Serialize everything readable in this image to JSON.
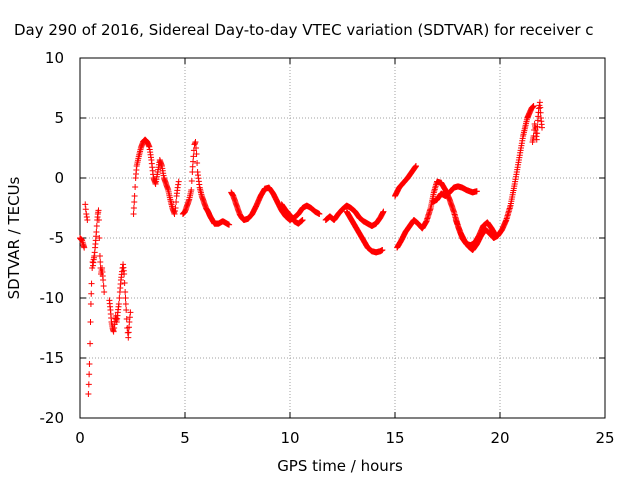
{
  "chart_data": {
    "type": "scatter",
    "title": "Day 290 of 2016, Sidereal Day-to-day VTEC variation (SDTVAR) for receiver c",
    "xlabel": "GPS time / hours",
    "ylabel": "SDTVAR / TECUs",
    "xlim": [
      0,
      25
    ],
    "ylim": [
      -20,
      10
    ],
    "xticks": [
      "0",
      "5",
      "10",
      "15",
      "20",
      "25"
    ],
    "yticks": [
      "-20",
      "-15",
      "-10",
      "-5",
      "0",
      "5",
      "10"
    ],
    "grid": true,
    "marker": "+",
    "color": "#ff0000",
    "segments": [
      [
        [
          0.0,
          -5.0
        ],
        [
          0.1,
          -5.2
        ],
        [
          0.15,
          -5.5
        ],
        [
          0.2,
          -5.8
        ]
      ],
      [
        [
          0.25,
          -2.2
        ],
        [
          0.3,
          -3.0
        ],
        [
          0.35,
          -3.5
        ]
      ],
      [
        [
          0.4,
          -18.0
        ],
        [
          0.42,
          -17.2
        ],
        [
          0.45,
          -15.5
        ],
        [
          0.48,
          -13.8
        ],
        [
          0.5,
          -12.0
        ],
        [
          0.52,
          -10.5
        ],
        [
          0.55,
          -8.8
        ],
        [
          0.58,
          -7.5
        ],
        [
          0.6,
          -7.0
        ],
        [
          0.62,
          -7.3
        ],
        [
          0.65,
          -6.8
        ],
        [
          0.68,
          -6.5
        ],
        [
          0.7,
          -6.2
        ],
        [
          0.72,
          -5.8
        ],
        [
          0.75,
          -5.2
        ],
        [
          0.78,
          -4.5
        ],
        [
          0.8,
          -4.0
        ],
        [
          0.82,
          -3.5
        ],
        [
          0.85,
          -3.0
        ],
        [
          0.88,
          -2.7
        ],
        [
          0.9,
          -3.5
        ],
        [
          0.92,
          -5.0
        ],
        [
          0.95,
          -6.5
        ],
        [
          0.98,
          -7.5
        ],
        [
          1.0,
          -8.0
        ],
        [
          1.05,
          -7.5
        ],
        [
          1.1,
          -8.5
        ],
        [
          1.15,
          -9.5
        ]
      ],
      [
        [
          1.4,
          -10.2
        ],
        [
          1.45,
          -11.0
        ],
        [
          1.5,
          -12.0
        ],
        [
          1.55,
          -12.5
        ],
        [
          1.6,
          -12.8
        ],
        [
          1.65,
          -12.2
        ],
        [
          1.7,
          -11.5
        ],
        [
          1.75,
          -12.0
        ],
        [
          1.8,
          -11.2
        ],
        [
          1.85,
          -10.5
        ],
        [
          1.9,
          -9.5
        ],
        [
          1.95,
          -8.5
        ],
        [
          2.0,
          -7.8
        ],
        [
          2.05,
          -7.2
        ],
        [
          2.1,
          -8.0
        ],
        [
          2.15,
          -9.5
        ],
        [
          2.2,
          -11.0
        ],
        [
          2.25,
          -12.5
        ],
        [
          2.3,
          -13.3
        ],
        [
          2.35,
          -12.0
        ],
        [
          2.4,
          -11.2
        ]
      ],
      [
        [
          2.55,
          -3.0
        ],
        [
          2.6,
          -1.5
        ],
        [
          2.65,
          0.0
        ],
        [
          2.7,
          1.0
        ],
        [
          2.8,
          1.8
        ],
        [
          2.9,
          2.5
        ],
        [
          3.0,
          3.0
        ],
        [
          3.1,
          3.2
        ],
        [
          3.2,
          3.0
        ],
        [
          3.3,
          2.6
        ],
        [
          3.4,
          1.5
        ],
        [
          3.5,
          0.0
        ],
        [
          3.6,
          -0.5
        ],
        [
          3.7,
          0.5
        ],
        [
          3.8,
          1.5
        ],
        [
          3.9,
          1.0
        ],
        [
          4.0,
          0.0
        ],
        [
          4.1,
          -0.5
        ],
        [
          4.2,
          -1.0
        ],
        [
          4.3,
          -1.8
        ],
        [
          4.4,
          -2.5
        ],
        [
          4.5,
          -3.0
        ],
        [
          4.55,
          -2.5
        ],
        [
          4.6,
          -1.5
        ],
        [
          4.65,
          -0.8
        ],
        [
          4.7,
          -0.3
        ]
      ],
      [
        [
          4.9,
          -3.0
        ],
        [
          5.0,
          -2.8
        ],
        [
          5.1,
          -2.3
        ],
        [
          5.2,
          -1.8
        ],
        [
          5.3,
          -1.0
        ],
        [
          5.35,
          0.5
        ],
        [
          5.4,
          1.8
        ],
        [
          5.45,
          2.8
        ],
        [
          5.5,
          3.0
        ],
        [
          5.55,
          2.0
        ],
        [
          5.6,
          0.5
        ],
        [
          5.7,
          -0.8
        ],
        [
          5.8,
          -1.5
        ],
        [
          5.9,
          -2.0
        ],
        [
          6.0,
          -2.5
        ],
        [
          6.1,
          -2.8
        ],
        [
          6.2,
          -3.2
        ],
        [
          6.3,
          -3.5
        ],
        [
          6.4,
          -3.8
        ],
        [
          6.6,
          -3.8
        ],
        [
          6.8,
          -3.6
        ],
        [
          7.0,
          -3.8
        ],
        [
          7.1,
          -3.9
        ]
      ],
      [
        [
          7.2,
          -1.2
        ],
        [
          7.3,
          -1.5
        ],
        [
          7.4,
          -2.0
        ],
        [
          7.5,
          -2.5
        ],
        [
          7.6,
          -3.0
        ],
        [
          7.7,
          -3.3
        ],
        [
          7.8,
          -3.5
        ],
        [
          8.0,
          -3.4
        ],
        [
          8.2,
          -3.0
        ],
        [
          8.4,
          -2.3
        ],
        [
          8.6,
          -1.5
        ],
        [
          8.8,
          -0.9
        ],
        [
          9.0,
          -0.8
        ],
        [
          9.2,
          -1.3
        ],
        [
          9.4,
          -2.0
        ],
        [
          9.6,
          -2.7
        ],
        [
          9.8,
          -3.2
        ],
        [
          10.0,
          -3.5
        ],
        [
          10.2,
          -3.3
        ],
        [
          10.4,
          -3.0
        ],
        [
          10.6,
          -2.5
        ],
        [
          10.8,
          -2.3
        ],
        [
          11.0,
          -2.5
        ],
        [
          11.2,
          -2.8
        ],
        [
          11.4,
          -3.0
        ]
      ],
      [
        [
          9.6,
          -2.2
        ],
        [
          9.8,
          -2.7
        ],
        [
          10.0,
          -3.1
        ],
        [
          10.2,
          -3.6
        ],
        [
          10.4,
          -3.8
        ],
        [
          10.6,
          -3.5
        ]
      ],
      [
        [
          11.7,
          -3.5
        ],
        [
          11.9,
          -3.2
        ],
        [
          12.1,
          -3.5
        ],
        [
          12.3,
          -3.0
        ],
        [
          12.5,
          -2.6
        ],
        [
          12.7,
          -2.3
        ],
        [
          12.9,
          -2.5
        ],
        [
          13.1,
          -2.8
        ],
        [
          13.3,
          -3.3
        ],
        [
          13.5,
          -3.6
        ],
        [
          13.7,
          -3.8
        ],
        [
          13.9,
          -4.0
        ],
        [
          14.1,
          -3.8
        ],
        [
          14.3,
          -3.3
        ],
        [
          14.45,
          -2.8
        ]
      ],
      [
        [
          12.7,
          -2.8
        ],
        [
          12.9,
          -3.4
        ],
        [
          13.1,
          -4.0
        ],
        [
          13.3,
          -4.6
        ],
        [
          13.5,
          -5.2
        ],
        [
          13.7,
          -5.8
        ],
        [
          13.9,
          -6.1
        ],
        [
          14.1,
          -6.2
        ],
        [
          14.3,
          -6.1
        ],
        [
          14.4,
          -6.0
        ]
      ],
      [
        [
          15.0,
          -1.5
        ],
        [
          15.2,
          -0.8
        ],
        [
          15.4,
          -0.4
        ],
        [
          15.6,
          0.0
        ],
        [
          15.8,
          0.5
        ],
        [
          16.0,
          1.0
        ]
      ],
      [
        [
          15.1,
          -5.8
        ],
        [
          15.3,
          -5.2
        ],
        [
          15.5,
          -4.5
        ],
        [
          15.7,
          -4.0
        ],
        [
          15.9,
          -3.5
        ],
        [
          16.1,
          -3.8
        ],
        [
          16.3,
          -4.2
        ],
        [
          16.5,
          -3.6
        ],
        [
          16.7,
          -2.5
        ],
        [
          16.85,
          -1.2
        ],
        [
          17.0,
          -0.3
        ],
        [
          17.2,
          -0.4
        ],
        [
          17.4,
          -1.0
        ],
        [
          17.6,
          -1.8
        ],
        [
          17.8,
          -2.8
        ],
        [
          18.0,
          -4.0
        ],
        [
          18.2,
          -5.0
        ],
        [
          18.4,
          -5.5
        ],
        [
          18.6,
          -5.6
        ],
        [
          18.8,
          -5.4
        ],
        [
          19.0,
          -4.8
        ],
        [
          19.2,
          -4.0
        ],
        [
          19.4,
          -3.7
        ],
        [
          19.6,
          -4.2
        ],
        [
          19.8,
          -4.8
        ]
      ],
      [
        [
          16.8,
          -2.0
        ],
        [
          17.0,
          -1.8
        ],
        [
          17.2,
          -1.3
        ],
        [
          17.4,
          -1.5
        ],
        [
          17.6,
          -1.2
        ],
        [
          17.8,
          -0.8
        ],
        [
          18.0,
          -0.7
        ],
        [
          18.2,
          -0.8
        ],
        [
          18.4,
          -1.0
        ],
        [
          18.7,
          -1.2
        ],
        [
          18.9,
          -1.1
        ]
      ],
      [
        [
          17.9,
          -3.5
        ],
        [
          18.1,
          -4.5
        ],
        [
          18.3,
          -5.2
        ],
        [
          18.5,
          -5.7
        ],
        [
          18.7,
          -6.0
        ],
        [
          18.9,
          -5.5
        ],
        [
          19.1,
          -4.8
        ],
        [
          19.3,
          -4.3
        ],
        [
          19.5,
          -4.6
        ],
        [
          19.7,
          -5.0
        ],
        [
          19.9,
          -4.8
        ],
        [
          20.1,
          -4.3
        ],
        [
          20.3,
          -3.5
        ],
        [
          20.5,
          -2.3
        ],
        [
          20.7,
          -0.5
        ],
        [
          20.9,
          1.5
        ],
        [
          21.1,
          3.5
        ],
        [
          21.3,
          5.0
        ],
        [
          21.5,
          5.8
        ],
        [
          21.6,
          6.0
        ]
      ],
      [
        [
          21.55,
          3.0
        ],
        [
          21.6,
          3.5
        ],
        [
          21.65,
          4.5
        ],
        [
          21.7,
          4.0
        ],
        [
          21.75,
          3.2
        ],
        [
          21.8,
          4.8
        ],
        [
          21.85,
          5.8
        ],
        [
          21.9,
          6.3
        ],
        [
          21.95,
          5.0
        ],
        [
          22.0,
          4.2
        ]
      ]
    ]
  }
}
